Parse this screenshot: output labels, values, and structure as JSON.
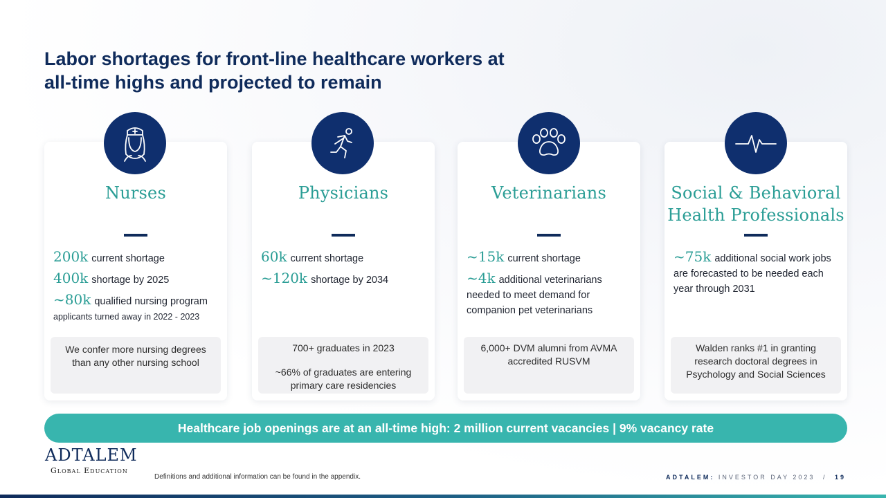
{
  "title": {
    "line1": "Labor shortages for front-line healthcare workers at",
    "line2": "all-time highs and projected to remain"
  },
  "colors": {
    "navy": "#0f2b5b",
    "teal": "#2a9d95",
    "banner": "#38b5ae"
  },
  "cards": [
    {
      "icon": "nurse-icon",
      "title": "Nurses",
      "stats": [
        {
          "num": "200k",
          "text": "current shortage"
        },
        {
          "num": "400k",
          "text": "shortage by 2025"
        },
        {
          "num": "~80k",
          "text": "qualified nursing program",
          "small": "applicants turned away in 2022 - 2023"
        }
      ],
      "note": {
        "line1": "We confer more nursing degrees than any other nursing school"
      }
    },
    {
      "icon": "runner-icon",
      "title": "Physicians",
      "stats": [
        {
          "num": "60k",
          "text": "current shortage"
        },
        {
          "num": "~120k",
          "text": "shortage by 2034"
        }
      ],
      "note": {
        "line1": "700+ graduates in 2023",
        "line2": "~66% of graduates are entering primary care residencies"
      }
    },
    {
      "icon": "paw-icon",
      "title": "Veterinarians",
      "stats": [
        {
          "num": "~15k",
          "text": "current shortage"
        },
        {
          "num": "~4k",
          "text": "additional veterinarians needed to meet demand for companion pet veterinarians"
        }
      ],
      "note": {
        "line1": "6,000+ DVM alumni from AVMA accredited RUSVM"
      }
    },
    {
      "icon": "heartbeat-icon",
      "title_line1": "Social & Behavioral",
      "title_line2": "Health Professionals",
      "stats": [
        {
          "num": "~75k",
          "text": "additional social work jobs are forecasted to be needed each year through 2031"
        }
      ],
      "note": {
        "line1": "Walden ranks #1 in granting research doctoral degrees in Psychology and Social Sciences"
      }
    }
  ],
  "banner": "Healthcare job openings are at an all-time high: 2 million current vacancies | 9% vacancy rate",
  "logo": {
    "main": "ADTALEM",
    "sub": "Global Education"
  },
  "footnote": "Definitions and additional information can be found in the appendix.",
  "footer": {
    "brand": "ADTALEM:",
    "event": "INVESTOR DAY 2023",
    "sep": "/",
    "page": "19"
  }
}
